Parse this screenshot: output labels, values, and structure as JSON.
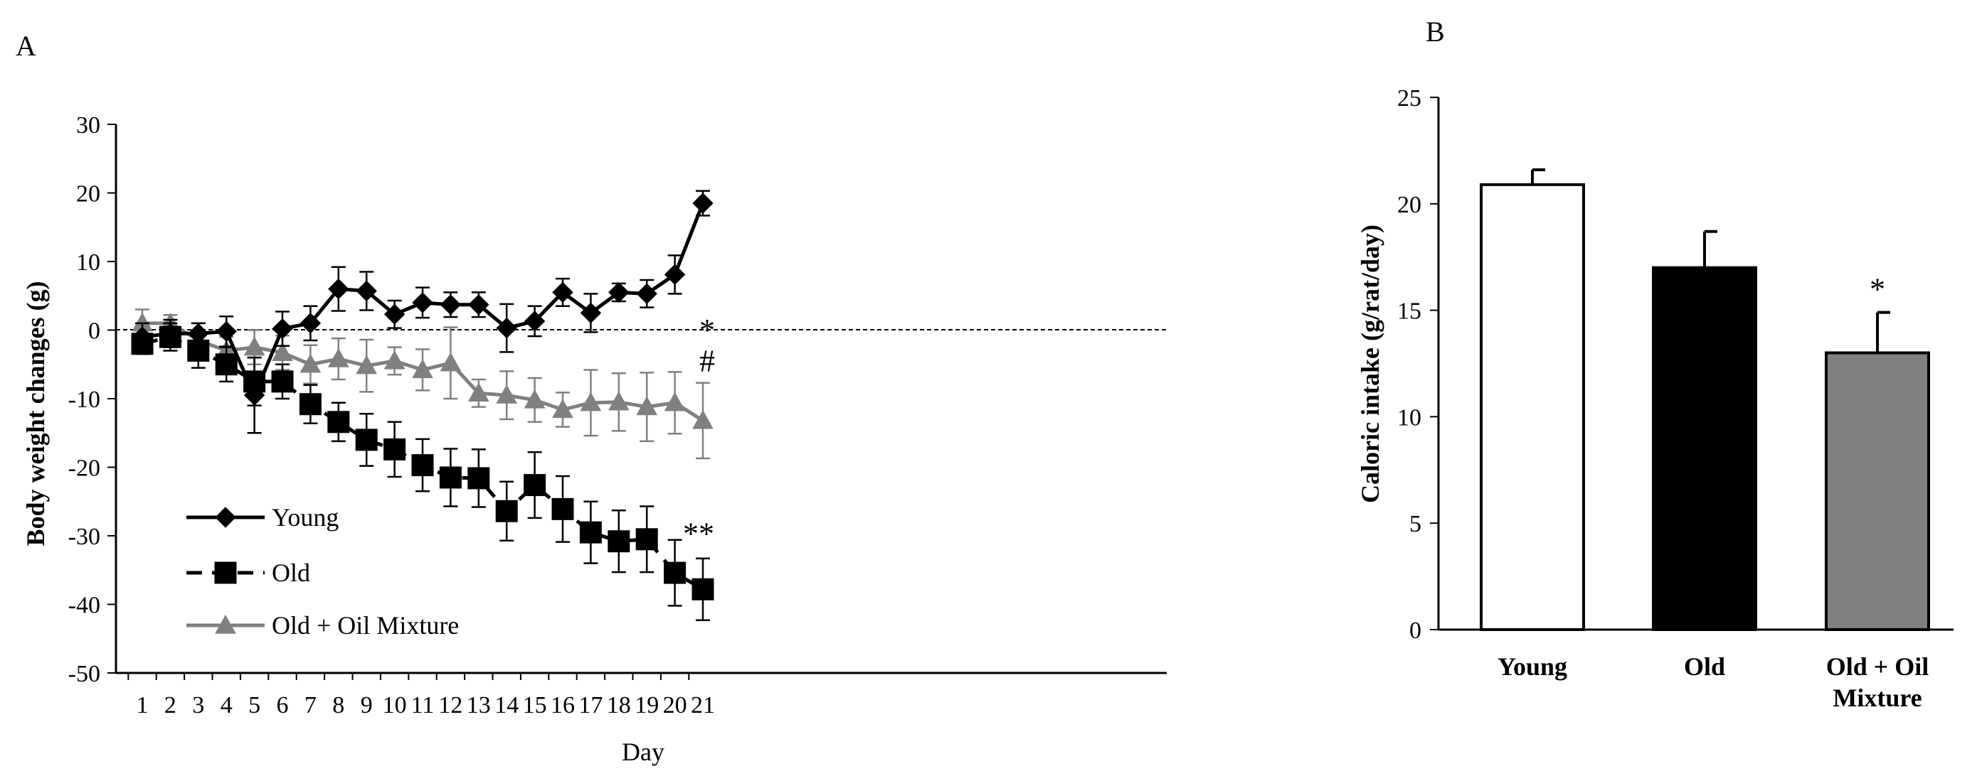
{
  "chart_data": [
    {
      "panel": "A",
      "type": "line",
      "xlabel": "Day",
      "ylabel": "Body weight changes (g)",
      "ylim": [
        -50,
        30
      ],
      "yticks": [
        30,
        20,
        10,
        0,
        -10,
        -20,
        -30,
        -40,
        -50
      ],
      "x": [
        1,
        2,
        3,
        4,
        5,
        6,
        7,
        8,
        9,
        10,
        11,
        12,
        13,
        14,
        15,
        16,
        17,
        18,
        19,
        20,
        21
      ],
      "series": [
        {
          "name": "Young",
          "marker": "diamond",
          "style": "solid",
          "color": "#000000",
          "values": [
            -1,
            -0.5,
            -0.5,
            -0.2,
            -9.5,
            0.2,
            1,
            6,
            5.7,
            2.3,
            4,
            3.7,
            3.7,
            0.3,
            1.3,
            5.5,
            2.5,
            5.5,
            5.3,
            8.1,
            18.5
          ],
          "errors": [
            2,
            2,
            1.5,
            2.2,
            5.5,
            2.5,
            2.5,
            3.2,
            2.8,
            2,
            2.2,
            1.8,
            1.8,
            3.5,
            2.2,
            2,
            2.8,
            1.3,
            2,
            2.8,
            1.8
          ]
        },
        {
          "name": "Old",
          "marker": "square",
          "style": "dashed",
          "color": "#000000",
          "values": [
            -2,
            -1,
            -3,
            -5,
            -7.5,
            -7.5,
            -10.8,
            -13.4,
            -16,
            -17.4,
            -19.7,
            -21.5,
            -21.6,
            -26.4,
            -22.6,
            -26.1,
            -29.5,
            -30.8,
            -30.5,
            -35.4,
            -37.8
          ],
          "errors": [
            1.5,
            2,
            2.5,
            2.5,
            3.5,
            2.5,
            2.8,
            2.8,
            3.8,
            4,
            3.8,
            4.2,
            4.2,
            4.3,
            4.8,
            4.8,
            4.5,
            4.5,
            4.8,
            4.8,
            4.5
          ]
        },
        {
          "name": "Old + Oil Mixture",
          "marker": "triangle",
          "style": "solid",
          "color": "#808080",
          "values": [
            1,
            1,
            -1.5,
            -3,
            -2.5,
            -3.3,
            -5,
            -4.2,
            -5.2,
            -4.5,
            -5.8,
            -4.8,
            -9.2,
            -9.5,
            -10.2,
            -11.6,
            -10.6,
            -10.5,
            -11.2,
            -10.6,
            -13.2
          ],
          "errors": [
            2,
            1.2,
            2.5,
            2,
            2.5,
            2.5,
            2.8,
            3,
            3.8,
            2,
            3,
            5.2,
            2,
            3.5,
            3.2,
            2.5,
            4.8,
            4.2,
            5,
            4.5,
            5.5
          ]
        }
      ],
      "annotations": [
        {
          "text": "*",
          "series": "Old + Oil Mixture",
          "day": 21
        },
        {
          "text": "#",
          "series": "Old + Oil Mixture",
          "day": 21
        },
        {
          "text": "**",
          "series": "Old",
          "day": 21
        }
      ],
      "reference_line": {
        "y": 0,
        "style": "dotted"
      },
      "legend": "bottom-left"
    },
    {
      "panel": "B",
      "type": "bar",
      "ylabel": "Caloric intake (g/rat/day)",
      "ylim": [
        0,
        25
      ],
      "yticks": [
        25,
        20,
        15,
        10,
        5,
        0
      ],
      "categories": [
        "Young",
        "Old",
        "Old + Oil Mixture"
      ],
      "category_lines": [
        [
          "Young"
        ],
        [
          "Old"
        ],
        [
          "Old + Oil",
          "Mixture"
        ]
      ],
      "values": [
        20.9,
        17.0,
        13.0
      ],
      "errors": [
        0.7,
        1.7,
        1.9
      ],
      "fills": [
        "#ffffff",
        "#000000",
        "#808080"
      ],
      "annotations": [
        {
          "text": "*",
          "category": "Old + Oil Mixture"
        }
      ]
    }
  ]
}
